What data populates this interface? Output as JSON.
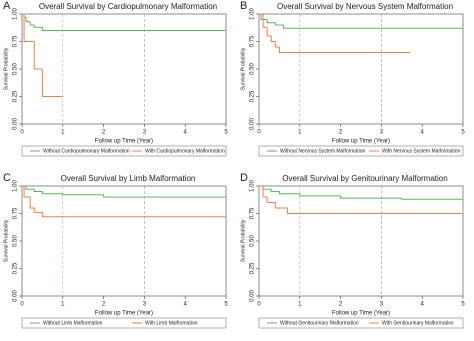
{
  "chart_data": [
    {
      "type": "step",
      "panel": "A",
      "title": "Overall Survival by Cardiopulmonary Malformation",
      "xlabel": "Follow up Time (Year)",
      "ylabel": "Survival Probability",
      "xlim": [
        0,
        5
      ],
      "ylim": [
        0,
        1
      ],
      "xticks": [
        0,
        1,
        2,
        3,
        4,
        5
      ],
      "yticks": [
        {
          "value": 0,
          "label": "0.00"
        },
        {
          "value": 0.25,
          "label": "0.25"
        },
        {
          "value": 0.5,
          "label": "0.50"
        },
        {
          "value": 0.75,
          "label": "0.75"
        },
        {
          "value": 1,
          "label": "1.00"
        }
      ],
      "reference_lines": [
        1,
        3
      ],
      "legend": "bottom",
      "series": [
        {
          "name": "Without Cardiopulmonary Malformation",
          "color": "#5cb85c",
          "x": [
            0,
            0.05,
            0.1,
            0.2,
            0.3,
            0.5,
            5
          ],
          "values": [
            1,
            0.97,
            0.93,
            0.9,
            0.88,
            0.85,
            0.85
          ]
        },
        {
          "name": "With Cardiopulmonary Malformation",
          "color": "#f0804f",
          "x": [
            0,
            0.05,
            0.3,
            0.5,
            1
          ],
          "values": [
            1,
            0.75,
            0.5,
            0.25,
            0.25
          ]
        }
      ]
    },
    {
      "type": "step",
      "panel": "B",
      "title": "Overall Survival by Nervous System Malformation",
      "xlabel": "Follow up Time (Year)",
      "ylabel": "Survival Probability",
      "xlim": [
        0,
        5
      ],
      "ylim": [
        0,
        1
      ],
      "xticks": [
        0,
        1,
        2,
        3,
        4,
        5
      ],
      "yticks": [
        {
          "value": 0,
          "label": "0.00"
        },
        {
          "value": 0.25,
          "label": "0.25"
        },
        {
          "value": 0.5,
          "label": "0.50"
        },
        {
          "value": 0.75,
          "label": "0.75"
        },
        {
          "value": 1,
          "label": "1.00"
        }
      ],
      "reference_lines": [
        1,
        3
      ],
      "legend": "bottom",
      "series": [
        {
          "name": "Without Nervous System Malformation",
          "color": "#5cb85c",
          "x": [
            0,
            0.05,
            0.2,
            0.4,
            0.6,
            5
          ],
          "values": [
            1,
            0.95,
            0.92,
            0.9,
            0.87,
            0.87
          ]
        },
        {
          "name": "With Nervous System Malformation",
          "color": "#f0804f",
          "x": [
            0,
            0.1,
            0.2,
            0.3,
            0.4,
            0.5,
            3.7
          ],
          "values": [
            1,
            0.88,
            0.8,
            0.75,
            0.7,
            0.65,
            0.65
          ]
        }
      ]
    },
    {
      "type": "step",
      "panel": "C",
      "title": "Overall Survival by Limb Malformation",
      "xlabel": "Follow up Time (Year)",
      "ylabel": "Survival Probability",
      "xlim": [
        0,
        5
      ],
      "ylim": [
        0,
        1
      ],
      "xticks": [
        0,
        1,
        2,
        3,
        4,
        5
      ],
      "yticks": [
        {
          "value": 0,
          "label": "0.00"
        },
        {
          "value": 0.25,
          "label": "0.25"
        },
        {
          "value": 0.5,
          "label": "0.50"
        },
        {
          "value": 0.75,
          "label": "0.75"
        },
        {
          "value": 1,
          "label": "1.00"
        }
      ],
      "reference_lines": [
        1,
        3
      ],
      "legend": "bottom",
      "series": [
        {
          "name": "Without Limb Malformation",
          "color": "#5cb85c",
          "x": [
            0,
            0.1,
            0.3,
            0.5,
            1,
            2,
            5
          ],
          "values": [
            1,
            0.97,
            0.95,
            0.93,
            0.92,
            0.9,
            0.9
          ]
        },
        {
          "name": "With Limb Malformation",
          "color": "#f0804f",
          "x": [
            0,
            0.05,
            0.2,
            0.3,
            0.5,
            5
          ],
          "values": [
            1,
            0.9,
            0.8,
            0.76,
            0.72,
            0.72
          ]
        }
      ]
    },
    {
      "type": "step",
      "panel": "D",
      "title": "Overall Survival by Genitourinary Malformation",
      "xlabel": "Follow up Time (Year)",
      "ylabel": "Survival Probability",
      "xlim": [
        0,
        5
      ],
      "ylim": [
        0,
        1
      ],
      "xticks": [
        0,
        1,
        2,
        3,
        4,
        5
      ],
      "yticks": [
        {
          "value": 0,
          "label": "0.00"
        },
        {
          "value": 0.25,
          "label": "0.25"
        },
        {
          "value": 0.5,
          "label": "0.50"
        },
        {
          "value": 0.75,
          "label": "0.75"
        },
        {
          "value": 1,
          "label": "1.00"
        }
      ],
      "reference_lines": [
        1,
        3
      ],
      "legend": "bottom",
      "series": [
        {
          "name": "Without Genitourinary Malformation",
          "color": "#5cb85c",
          "x": [
            0,
            0.1,
            0.3,
            0.5,
            1,
            2,
            3.5,
            5
          ],
          "values": [
            1,
            0.97,
            0.95,
            0.93,
            0.91,
            0.89,
            0.88,
            0.88
          ]
        },
        {
          "name": "With Genitourinary Malformation",
          "color": "#f0804f",
          "x": [
            0,
            0.1,
            0.2,
            0.4,
            0.7,
            5
          ],
          "values": [
            1,
            0.9,
            0.85,
            0.8,
            0.75,
            0.75
          ]
        }
      ]
    }
  ]
}
